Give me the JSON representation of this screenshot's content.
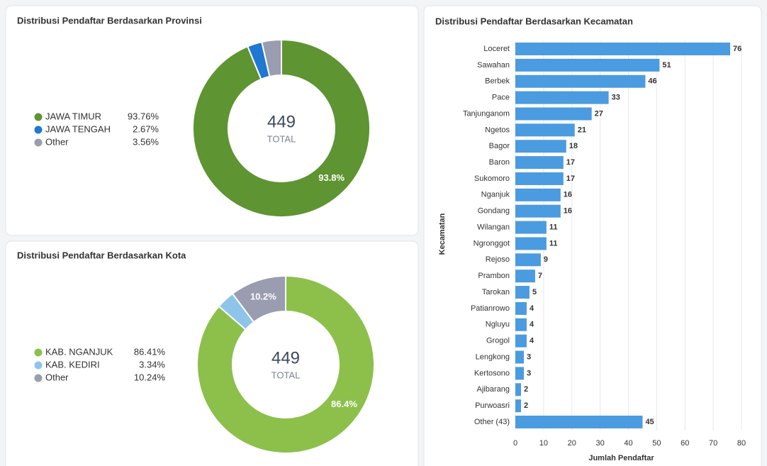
{
  "chart_data": [
    {
      "type": "donut",
      "title": "Distribusi Pendaftar Berdasarkan Provinsi",
      "categories": [
        "JAWA TIMUR",
        "JAWA TENGAH",
        "Other"
      ],
      "values": [
        93.76,
        2.67,
        3.56
      ],
      "legend_labels": [
        "93.76%",
        "2.67%",
        "3.56%"
      ],
      "value_labels": [
        "93.8%",
        null,
        null
      ],
      "colors": [
        "#5e9431",
        "#1f78d1",
        "#9a9cb0"
      ],
      "total": 449,
      "total_label": "TOTAL",
      "legend": "left"
    },
    {
      "type": "donut",
      "title": "Distribusi Pendaftar Berdasarkan Kota",
      "categories": [
        "KAB. NGANJUK",
        "KAB. KEDIRI",
        "Other"
      ],
      "values": [
        86.41,
        3.34,
        10.24
      ],
      "legend_labels": [
        "86.41%",
        "3.34%",
        "10.24%"
      ],
      "value_labels": [
        "86.4%",
        null,
        "10.2%"
      ],
      "colors": [
        "#8cc04b",
        "#8ec4ea",
        "#9a9cb0"
      ],
      "total": 449,
      "total_label": "TOTAL",
      "legend": "left"
    },
    {
      "type": "barh",
      "title": "Distribusi Pendaftar Berdasarkan Kecamatan",
      "categories": [
        "Loceret",
        "Sawahan",
        "Berbek",
        "Pace",
        "Tanjunganom",
        "Ngetos",
        "Bagor",
        "Baron",
        "Sukomoro",
        "Nganjuk",
        "Gondang",
        "Wilangan",
        "Ngronggot",
        "Rejoso",
        "Prambon",
        "Tarokan",
        "Patianrowo",
        "Ngluyu",
        "Grogol",
        "Lengkong",
        "Kertosono",
        "Ajibarang",
        "Purwoasri",
        "Other (43)"
      ],
      "values": [
        76,
        51,
        46,
        33,
        27,
        21,
        18,
        17,
        17,
        16,
        16,
        11,
        11,
        9,
        7,
        5,
        4,
        4,
        4,
        3,
        3,
        2,
        2,
        45
      ],
      "color": "#4b9be0",
      "xlim": [
        0,
        80
      ],
      "xticks": [
        0,
        10,
        20,
        30,
        40,
        50,
        60,
        70,
        80
      ],
      "xlabel": "Jumlah Pendaftar",
      "ylabel": "Kecamatan",
      "grid": true
    }
  ]
}
